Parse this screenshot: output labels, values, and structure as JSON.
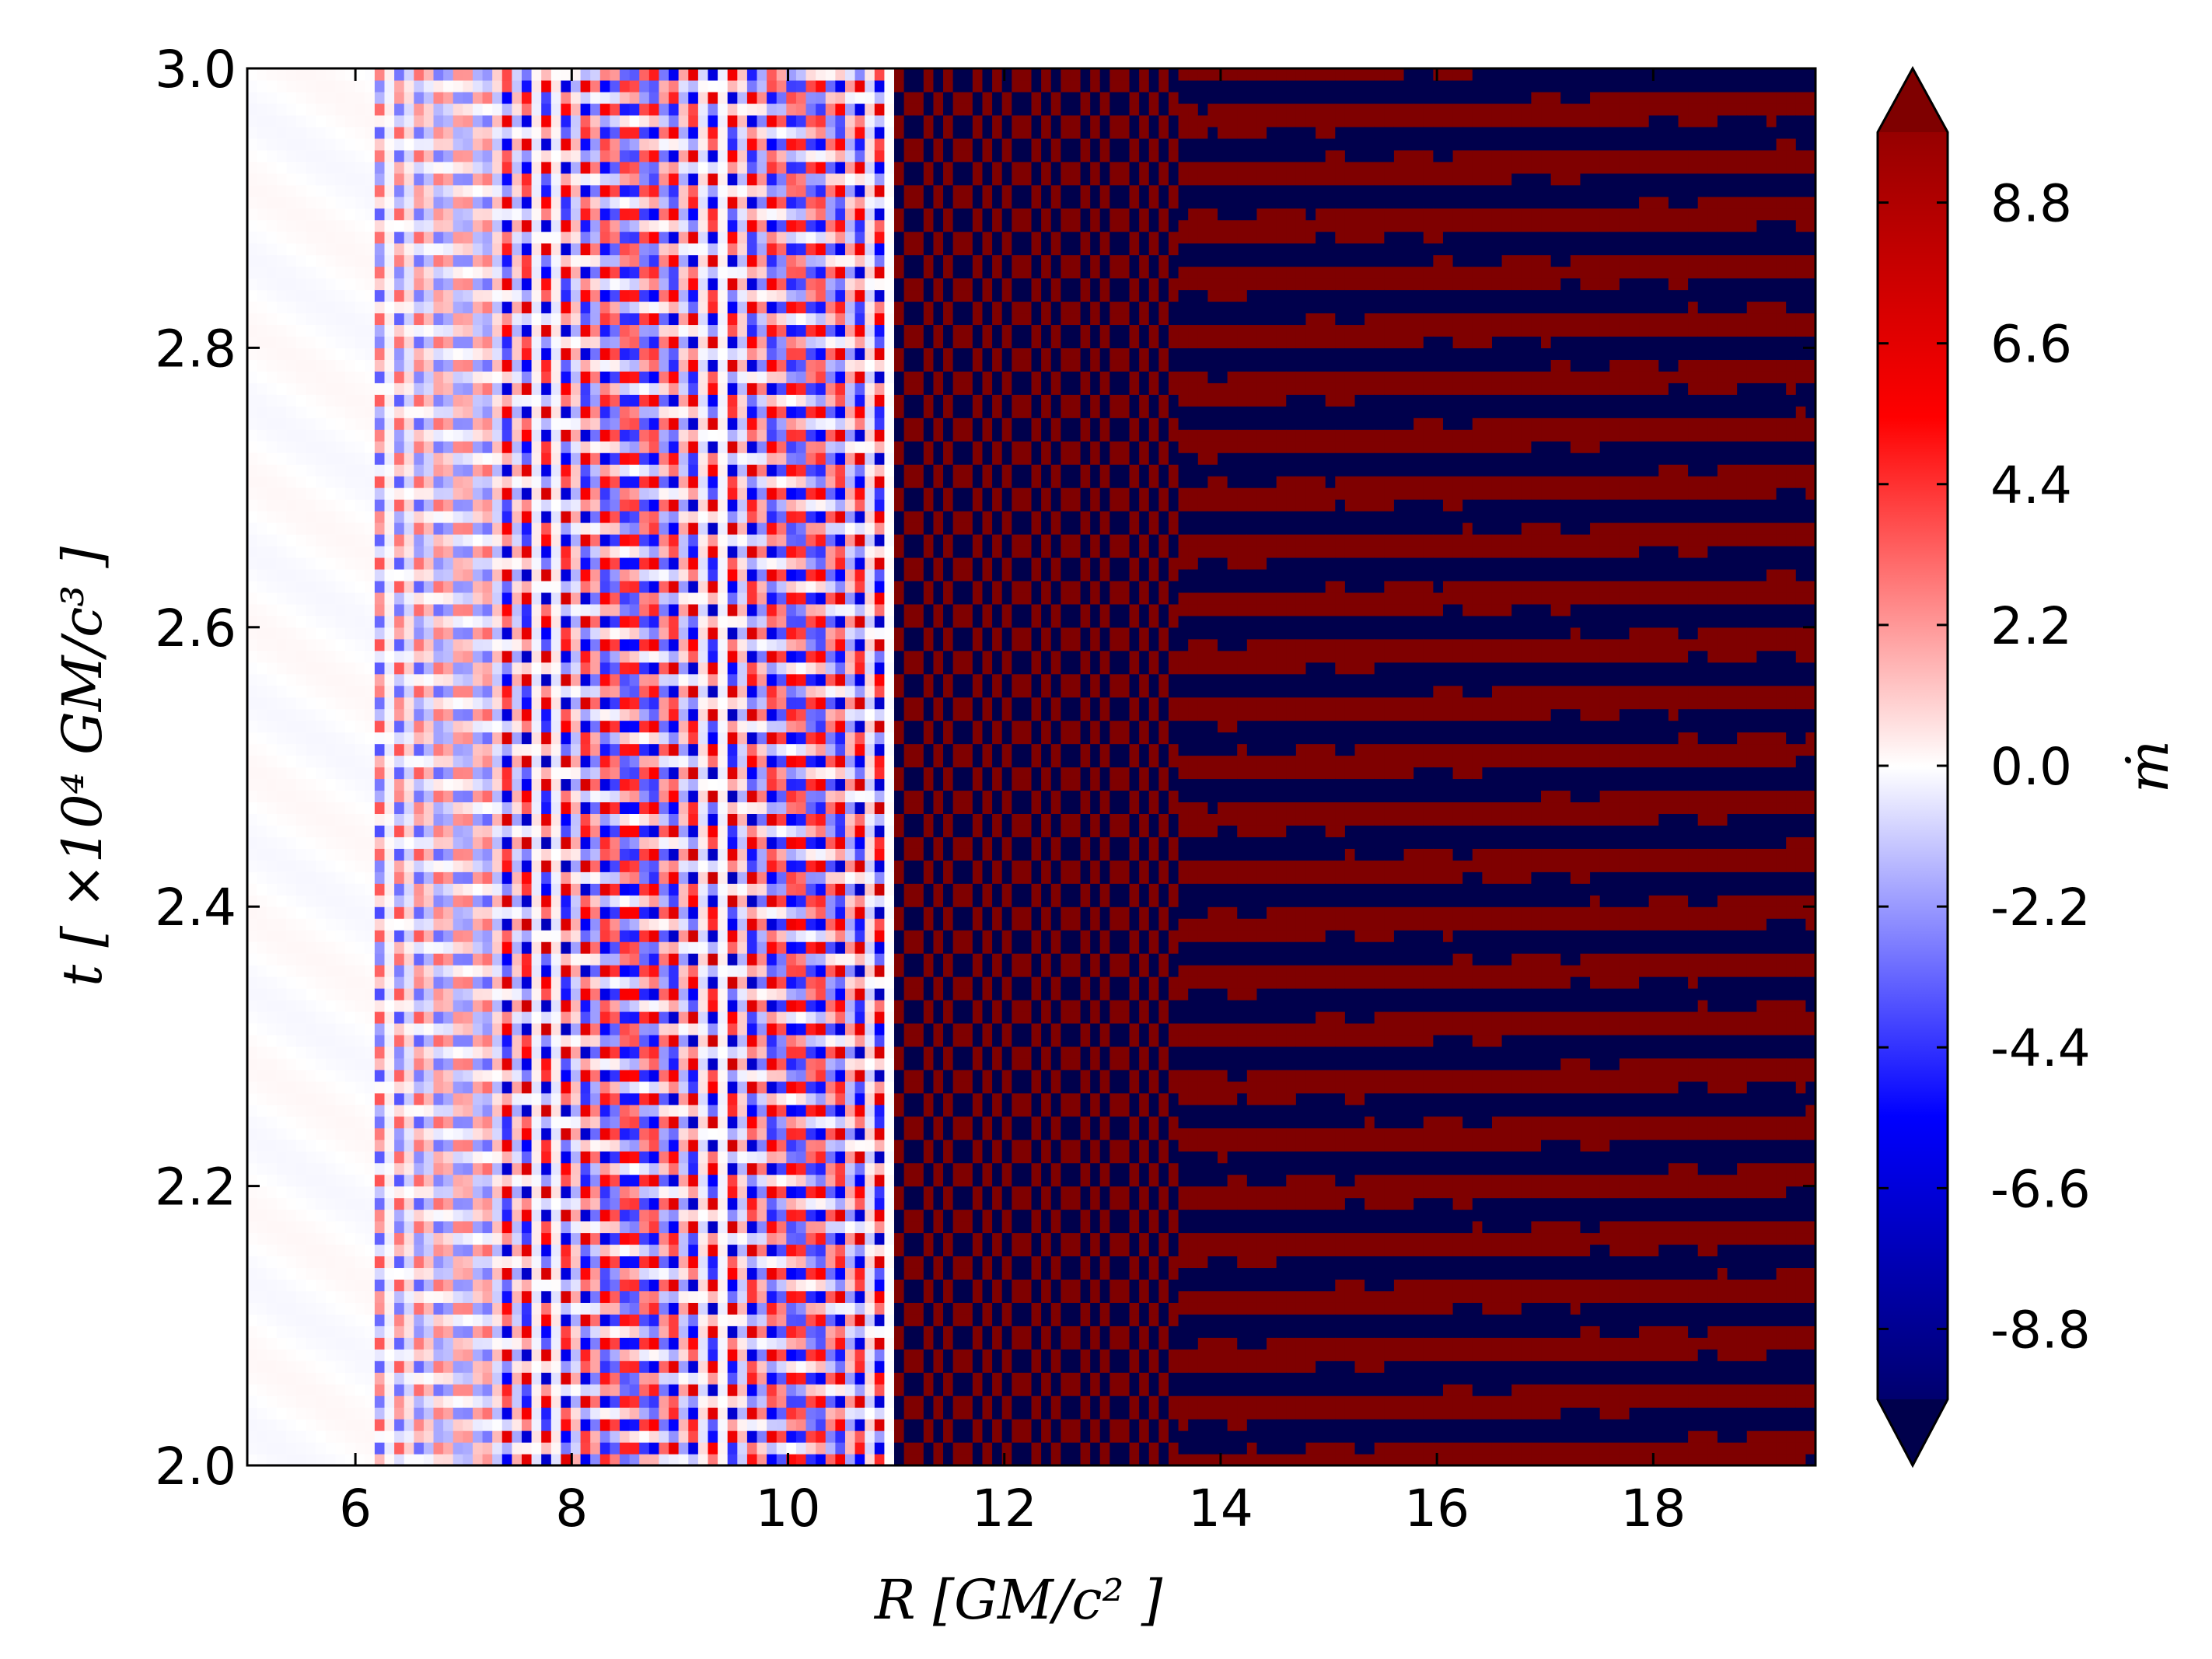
{
  "chart_data": {
    "type": "heatmap",
    "title": "",
    "xlabel": "R [GM/c² ]",
    "ylabel": "t [ ×10⁴ GM/c³ ]",
    "xlim": [
      5.0,
      19.5
    ],
    "ylim": [
      2.0,
      3.0
    ],
    "x_ticks": [
      6,
      8,
      10,
      12,
      14,
      16,
      18
    ],
    "y_ticks": [
      2.0,
      2.2,
      2.4,
      2.6,
      2.8,
      3.0
    ],
    "x_tick_labels": [
      "6",
      "8",
      "10",
      "12",
      "14",
      "16",
      "18"
    ],
    "y_tick_labels": [
      "2.0",
      "2.2",
      "2.4",
      "2.6",
      "2.8",
      "3.0"
    ],
    "colorbar": {
      "label": "ṁ",
      "range": [
        -9.9,
        9.9
      ],
      "extend": "both",
      "colormap": "seismic",
      "ticks": [
        8.8,
        6.6,
        4.4,
        2.2,
        0.0,
        -2.2,
        -4.4,
        -6.6,
        -8.8
      ],
      "tick_labels": [
        "8.8",
        "6.6",
        "4.4",
        "2.2",
        "0.0",
        "-2.2",
        "-4.4",
        "-6.6",
        "-8.8"
      ]
    },
    "colors": {
      "min": "#00004c",
      "low": "#0000ff",
      "zero": "#ffffff",
      "high": "#ff0000",
      "max": "#7f0000"
    },
    "regions": [
      {
        "R_range": [
          5.0,
          6.2
        ],
        "description_level": 0.2,
        "pattern": "near-zero"
      },
      {
        "R_range": [
          6.2,
          7.4
        ],
        "description_level": 2.5,
        "pattern": "low-amplitude oscillation"
      },
      {
        "R_range": [
          7.4,
          11.0
        ],
        "description_level": 5.0,
        "pattern": "moderate checkerboard oscillation"
      },
      {
        "R_range": [
          11.0,
          13.6
        ],
        "description_level": 9.9,
        "pattern": "saturated fine vertical oscillation"
      },
      {
        "R_range": [
          13.6,
          19.5
        ],
        "description_level": 9.9,
        "pattern": "saturated horizontal streaks"
      }
    ]
  }
}
